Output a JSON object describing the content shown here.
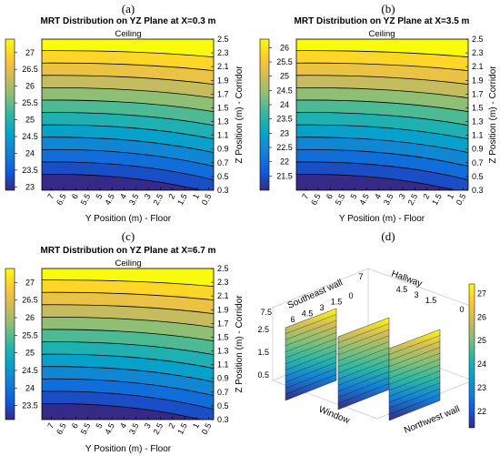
{
  "chart_data": [
    {
      "type": "heatmap",
      "panel_label": "(a)",
      "title": "MRT Distribution on YZ Plane at X=0.3 m",
      "top_label": "Ceiling",
      "xlabel": "Y Position (m) - Floor",
      "ylabel": "Z Position (m) - Corridor",
      "x_ticks": [
        "7",
        "6.5",
        "6",
        "5.5",
        "5",
        "4.5",
        "4",
        "3.5",
        "3",
        "2.5",
        "2",
        "1.5",
        "1",
        "0.5"
      ],
      "xlim": [
        7.4,
        0.3
      ],
      "y_ticks": [
        "2.5",
        "2.3",
        "2.1",
        "1.9",
        "1.7",
        "1.5",
        "1.3",
        "1.1",
        "0.9",
        "0.7",
        "0.5",
        "0.3"
      ],
      "ylim": [
        0.3,
        2.5
      ],
      "colorbar_ticks": [
        "27",
        "26.5",
        "26",
        "25.5",
        "25",
        "24.5",
        "24",
        "23.5",
        "23"
      ],
      "colorbar_range": [
        22.9,
        27.4
      ],
      "colormap": "parula",
      "contour_count": 12
    },
    {
      "type": "heatmap",
      "panel_label": "(b)",
      "title": "MRT Distribution on YZ Plane at X=3.5 m",
      "top_label": "Ceiling",
      "xlabel": "Y Position (m) - Floor",
      "ylabel": "Z Position (m) - Corridor",
      "x_ticks": [
        "7",
        "6.5",
        "6",
        "5.5",
        "5",
        "4.5",
        "4",
        "3.5",
        "3",
        "2.5",
        "2",
        "1.5",
        "1",
        "0.5"
      ],
      "xlim": [
        7.4,
        0.3
      ],
      "y_ticks": [
        "2.5",
        "2.3",
        "2.1",
        "1.9",
        "1.7",
        "1.5",
        "1.3",
        "1.1",
        "0.9",
        "0.7",
        "0.5",
        "0.3"
      ],
      "ylim": [
        0.3,
        2.5
      ],
      "colorbar_ticks": [
        "26",
        "25.5",
        "25",
        "24.5",
        "24",
        "23.5",
        "23",
        "22.5",
        "22",
        "21.5"
      ],
      "colorbar_range": [
        21.0,
        26.3
      ],
      "colormap": "parula",
      "contour_count": 12
    },
    {
      "type": "heatmap",
      "panel_label": "(c)",
      "title": "MRT Distribution on YZ Plane at X=6.7 m",
      "top_label": "Ceiling",
      "xlabel": "Y Position (m) - Floor",
      "ylabel": "Z Position (m) - Corridor",
      "x_ticks": [
        "7",
        "6.5",
        "6",
        "5.5",
        "5",
        "4.5",
        "4",
        "3.5",
        "3",
        "2.5",
        "2",
        "1.5",
        "1",
        "0.5"
      ],
      "xlim": [
        7.4,
        0.3
      ],
      "y_ticks": [
        "2.5",
        "2.3",
        "2.1",
        "1.9",
        "1.7",
        "1.5",
        "1.3",
        "1.1",
        "0.9",
        "0.7",
        "0.5",
        "0.3"
      ],
      "ylim": [
        0.3,
        2.5
      ],
      "colorbar_ticks": [
        "27",
        "26.5",
        "26",
        "25.5",
        "25",
        "24.5",
        "24",
        "23.5"
      ],
      "colorbar_range": [
        23.1,
        27.4
      ],
      "colormap": "parula",
      "contour_count": 12
    },
    {
      "type": "heatmap",
      "panel_label": "(d)",
      "view": "3d-slices",
      "axis_labels": [
        "Southeast wall",
        "Hallway",
        "Window",
        "Northwest wall"
      ],
      "southeast_ticks": [
        "6",
        "4.5",
        "3",
        "1.5",
        "0"
      ],
      "hallway_ticks": [
        "7",
        "4.5",
        "3",
        "1.5",
        "0"
      ],
      "z_ticks": [
        "7.5",
        "2.5",
        "1.5",
        "0.5"
      ],
      "colorbar_ticks": [
        "27",
        "26",
        "25",
        "24",
        "23",
        "22"
      ],
      "colorbar_range": [
        21.3,
        27.4
      ],
      "colormap": "parula"
    }
  ]
}
